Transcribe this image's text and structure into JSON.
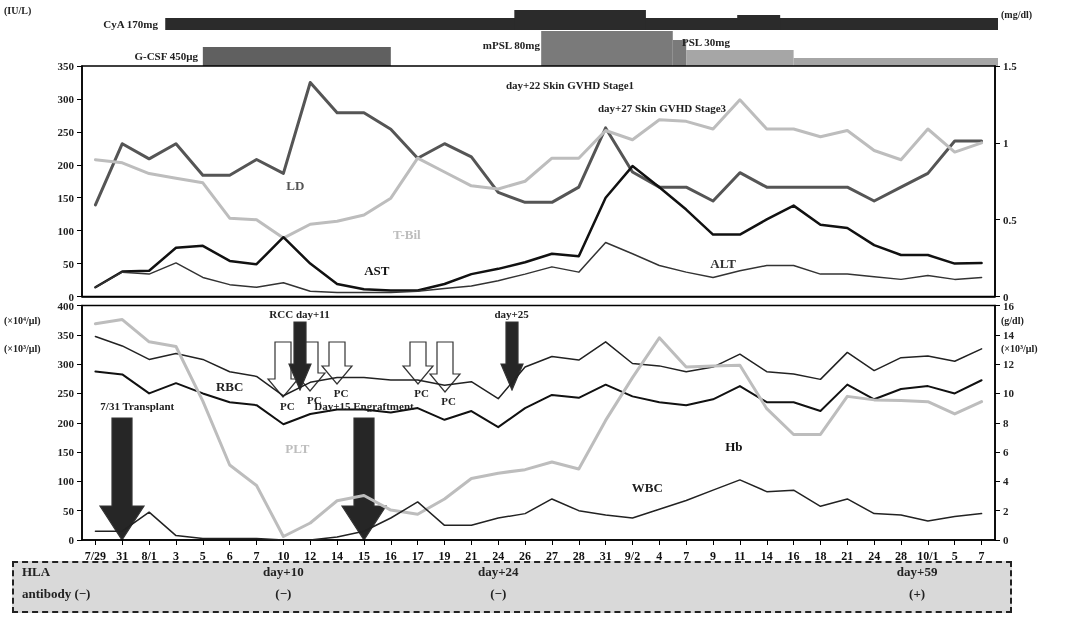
{
  "chart_data": [
    {
      "type": "line",
      "ylabel": "(IU/L)",
      "y2label": "(mg/dl)",
      "categories": [
        null,
        null,
        null,
        null,
        null,
        null,
        null,
        null,
        null,
        null,
        null,
        null,
        null,
        null,
        null,
        null,
        null,
        null,
        null,
        null,
        null,
        null,
        null,
        null,
        null,
        null,
        null,
        null,
        null,
        null,
        null,
        null,
        null,
        null
      ],
      "series": [
        {
          "name": "LD",
          "color": "#555555",
          "values": [
            139,
            232,
            209,
            232,
            184,
            184,
            208,
            187,
            325,
            279,
            279,
            254,
            210,
            232,
            212,
            158,
            143,
            143,
            166,
            256,
            189,
            166,
            166,
            145,
            188,
            166,
            166,
            166,
            166,
            145,
            166,
            187,
            236,
            236
          ]
        },
        {
          "name": "T-Bil",
          "color": "#bdbdbd",
          "axis": "y2",
          "values": [
            0.89,
            0.87,
            0.8,
            0.77,
            0.74,
            0.51,
            0.5,
            0.38,
            0.47,
            0.49,
            0.53,
            0.64,
            0.9,
            0.81,
            0.72,
            0.7,
            0.75,
            0.9,
            0.9,
            1.08,
            1.02,
            1.15,
            1.14,
            1.09,
            1.28,
            1.09,
            1.09,
            1.04,
            1.08,
            0.95,
            0.89,
            1.09,
            0.94,
            1.0
          ]
        },
        {
          "name": "AST",
          "color": "#111111",
          "values": [
            14,
            38,
            39,
            74,
            77,
            54,
            49,
            90,
            50,
            19,
            11,
            9,
            9,
            19,
            34,
            42,
            52,
            65,
            61,
            150,
            198,
            166,
            132,
            94,
            94,
            117,
            138,
            109,
            104,
            78,
            63,
            63,
            50,
            51
          ]
        },
        {
          "name": "ALT",
          "color": "#333333",
          "values": [
            14,
            37,
            34,
            51,
            29,
            18,
            14,
            21,
            8,
            6,
            6,
            6,
            8,
            12,
            16,
            24,
            34,
            45,
            37,
            82,
            65,
            47,
            37,
            29,
            39,
            47,
            47,
            34,
            34,
            30,
            26,
            32,
            26,
            29
          ]
        }
      ],
      "ylim": [
        0,
        350
      ],
      "yticks": [
        0,
        50,
        100,
        150,
        200,
        250,
        300,
        350
      ],
      "y2lim": [
        0,
        1.5
      ],
      "y2ticks": [
        0,
        0.5,
        1,
        1.5
      ],
      "tick_labels": "y",
      "marker": "none",
      "line_style": "solid",
      "annotations": [
        "CyA 170mg",
        "G-CSF 450μg",
        "mPSL 80mg",
        "PSL 30mg",
        "day+22 Skin GVHD Stage1",
        "day+27 Skin GVHD Stage3"
      ]
    },
    {
      "type": "line",
      "ylabel": "(×10⁴/μl)\n(×10³/μl)",
      "y2label": "(g/dl)\n(×10³/μl)",
      "categories": [
        "7/29",
        "31",
        "8/1",
        "3",
        "5",
        "6",
        "7",
        "10",
        "12",
        "14",
        "15",
        "16",
        "17",
        "19",
        "21",
        "24",
        "26",
        "27",
        "28",
        "31",
        "9/2",
        "4",
        "7",
        "9",
        "11",
        "14",
        "16",
        "18",
        "21",
        "24",
        "28",
        "10/1",
        "5",
        "7"
      ],
      "series": [
        {
          "name": "RBC",
          "color": "#222222",
          "values": [
            347,
            331,
            308,
            318,
            308,
            287,
            279,
            246,
            269,
            277,
            277,
            273,
            273,
            264,
            270,
            241,
            295,
            313,
            307,
            338,
            301,
            297,
            287,
            295,
            317,
            287,
            283,
            274,
            320,
            289,
            311,
            314,
            305,
            326
          ]
        },
        {
          "name": "Hb",
          "color": "#111111",
          "axis": "y2",
          "values": [
            11.5,
            11.3,
            10.0,
            10.7,
            10.0,
            9.4,
            9.2,
            7.9,
            8.6,
            8.9,
            8.9,
            8.7,
            9.0,
            8.2,
            8.8,
            7.7,
            9.0,
            9.9,
            9.7,
            10.6,
            9.8,
            9.4,
            9.2,
            9.6,
            10.5,
            9.4,
            9.4,
            8.8,
            10.6,
            9.6,
            10.3,
            10.5,
            10.0,
            10.9
          ]
        },
        {
          "name": "PLT",
          "color": "#bdbdbd",
          "values": [
            369,
            376,
            338,
            330,
            237,
            128,
            93,
            6,
            29,
            67,
            76,
            51,
            44,
            70,
            105,
            114,
            120,
            133,
            121,
            204,
            277,
            345,
            295,
            297,
            298,
            224,
            180,
            180,
            245,
            239,
            238,
            236,
            215,
            236
          ]
        },
        {
          "name": "WBC",
          "color": "#222222",
          "axis": "y2",
          "values": [
            0.6,
            0.6,
            1.9,
            0.3,
            0.1,
            0.1,
            0.1,
            0,
            0,
            0.2,
            0.6,
            1.5,
            2.6,
            1.0,
            1.0,
            1.5,
            1.8,
            2.8,
            2.0,
            1.7,
            1.5,
            2.1,
            2.7,
            3.4,
            4.1,
            3.3,
            3.4,
            2.3,
            2.8,
            1.8,
            1.7,
            1.3,
            1.6,
            1.8
          ]
        }
      ],
      "ylim": [
        0,
        400
      ],
      "yticks": [
        0,
        50,
        100,
        150,
        200,
        250,
        300,
        350,
        400
      ],
      "y2lim": [
        0,
        16
      ],
      "y2ticks": [
        0,
        2,
        4,
        6,
        8,
        10,
        12,
        14,
        16
      ],
      "marker": "none",
      "line_style": "solid",
      "annotations": [
        "7/31 Transplant",
        "Day+15 Engraftment",
        "RCC day+11",
        "day+25",
        "PC",
        "PC",
        "PC",
        "PC",
        "PC",
        "HLA\nantibody (−)",
        "day+10\n(−)",
        "day+24\n(−)",
        "day+59\n(+)"
      ]
    }
  ]
}
